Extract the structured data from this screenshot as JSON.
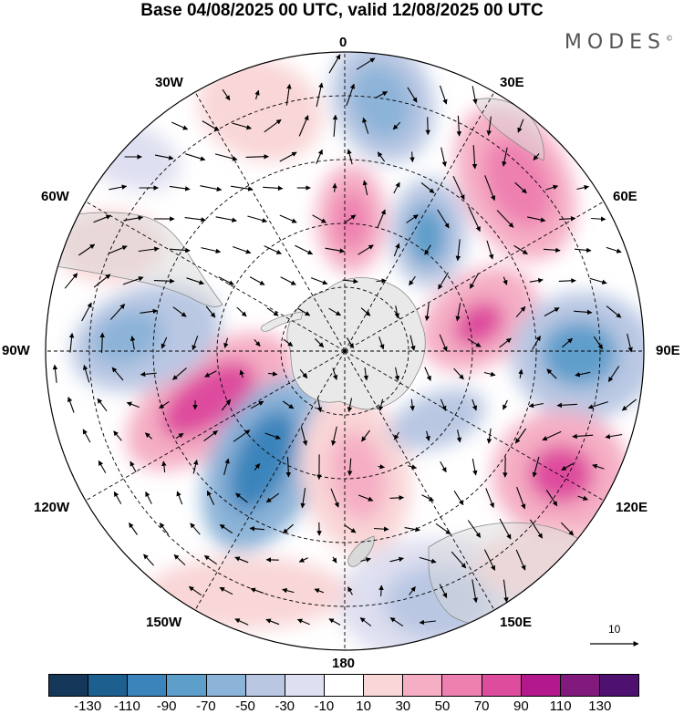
{
  "title": "Base 04/08/2025 00 UTC, valid 12/08/2025 00 UTC",
  "brand": "MODES",
  "brand_mark": "©",
  "longitude_labels": {
    "lon_0": "0",
    "lon_30e": "30E",
    "lon_60e": "60E",
    "lon_90e": "90E",
    "lon_120e": "120E",
    "lon_150e": "150E",
    "lon_180": "180",
    "lon_150w": "150W",
    "lon_120w": "120W",
    "lon_90w": "90W",
    "lon_60w": "60W",
    "lon_30w": "30W"
  },
  "reference_vector": {
    "label": "10"
  },
  "colorbar": {
    "ticks": [
      "-130",
      "-110",
      "-90",
      "-70",
      "-50",
      "-30",
      "-10",
      "10",
      "30",
      "50",
      "70",
      "90",
      "110",
      "130"
    ],
    "colors": [
      "#15385a",
      "#1d5f8f",
      "#3a84bb",
      "#5e9ecb",
      "#8cb3d8",
      "#b9c7e3",
      "#dedff0",
      "#ffffff",
      "#f9d6d7",
      "#f5aec4",
      "#ee80b0",
      "#de4c9e",
      "#b3198c",
      "#821a7e",
      "#4e1170"
    ]
  },
  "colors": {
    "continent": "#e9e9e9",
    "coastline": "#8a8a8a",
    "grid": "#000000"
  }
}
